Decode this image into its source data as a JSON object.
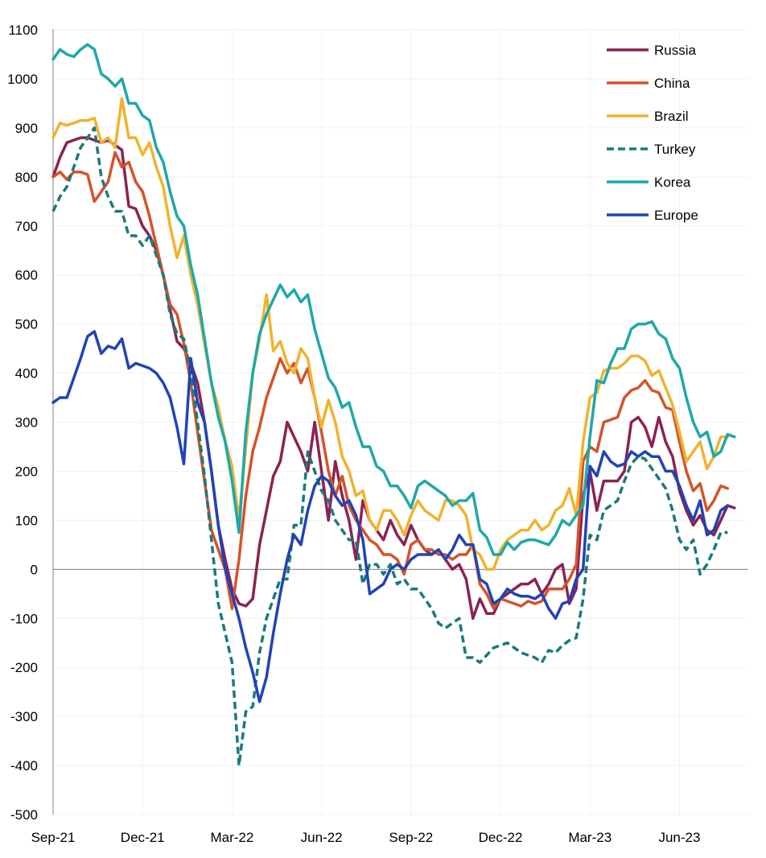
{
  "chart_data": {
    "type": "line",
    "title": "",
    "xlabel": "",
    "ylabel": "",
    "ylim": [
      -500,
      1100
    ],
    "yticks": [
      -500,
      -400,
      -300,
      -200,
      -100,
      0,
      100,
      200,
      300,
      400,
      500,
      600,
      700,
      800,
      900,
      1000,
      1100
    ],
    "xlim": [
      0,
      101
    ],
    "xticks": [
      {
        "x": 0,
        "label": "Sep-21"
      },
      {
        "x": 13,
        "label": "Dec-21"
      },
      {
        "x": 26,
        "label": "Mar-22"
      },
      {
        "x": 39,
        "label": "Jun-22"
      },
      {
        "x": 52,
        "label": "Sep-22"
      },
      {
        "x": 65,
        "label": "Dec-22"
      },
      {
        "x": 78,
        "label": "Mar-23"
      },
      {
        "x": 91,
        "label": "Jun-23"
      }
    ],
    "grid": "horizontal",
    "legend_position": "top-right",
    "series": [
      {
        "name": "Russia",
        "color": "#8B2252",
        "dash": "solid",
        "values": [
          800,
          840,
          870,
          875,
          880,
          880,
          875,
          870,
          875,
          865,
          855,
          740,
          735,
          700,
          680,
          650,
          600,
          530,
          465,
          450,
          420,
          380,
          300,
          200,
          90,
          20,
          -40,
          -70,
          -75,
          -60,
          50,
          120,
          190,
          220,
          300,
          270,
          240,
          200,
          300,
          200,
          100,
          220,
          150,
          100,
          20,
          140,
          100,
          80,
          60,
          100,
          70,
          50,
          90,
          60,
          40,
          30,
          40,
          20,
          0,
          10,
          -20,
          -100,
          -60,
          -90,
          -90,
          -60,
          -50,
          -40,
          -30,
          -30,
          -20,
          -50,
          -30,
          0,
          10,
          -70,
          -40,
          150,
          200,
          120,
          180,
          180,
          180,
          200,
          300,
          310,
          290,
          250,
          310,
          260,
          230,
          160,
          120,
          90,
          110,
          80,
          70,
          100,
          130,
          125
        ]
      },
      {
        "name": "China",
        "color": "#D4532A",
        "dash": "solid",
        "values": [
          800,
          810,
          795,
          810,
          810,
          805,
          750,
          770,
          790,
          850,
          820,
          830,
          790,
          770,
          720,
          660,
          600,
          540,
          520,
          460,
          380,
          280,
          180,
          80,
          40,
          0,
          -80,
          20,
          150,
          240,
          290,
          350,
          390,
          430,
          400,
          420,
          380,
          410,
          350,
          280,
          200,
          150,
          190,
          130,
          100,
          80,
          60,
          50,
          30,
          30,
          20,
          -10,
          50,
          60,
          40,
          40,
          30,
          30,
          20,
          30,
          30,
          50,
          -30,
          -50,
          -80,
          -60,
          -65,
          -70,
          -75,
          -65,
          -70,
          -65,
          -40,
          -40,
          -40,
          -20,
          10,
          220,
          250,
          240,
          300,
          305,
          310,
          350,
          365,
          370,
          385,
          365,
          360,
          330,
          325,
          260,
          200,
          160,
          175,
          120,
          140,
          170,
          165
        ]
      },
      {
        "name": "Brazil",
        "color": "#F0B32D",
        "dash": "solid",
        "values": [
          880,
          910,
          905,
          910,
          915,
          915,
          920,
          870,
          880,
          860,
          960,
          880,
          880,
          845,
          870,
          820,
          780,
          700,
          635,
          680,
          600,
          540,
          460,
          380,
          330,
          260,
          210,
          100,
          250,
          400,
          470,
          560,
          445,
          465,
          420,
          400,
          450,
          430,
          350,
          290,
          345,
          300,
          230,
          200,
          150,
          160,
          100,
          80,
          120,
          120,
          100,
          70,
          110,
          140,
          120,
          110,
          100,
          140,
          140,
          130,
          110,
          40,
          30,
          0,
          0,
          40,
          60,
          70,
          80,
          80,
          100,
          80,
          90,
          120,
          130,
          165,
          110,
          260,
          350,
          360,
          405,
          410,
          410,
          420,
          435,
          435,
          425,
          395,
          405,
          370,
          335,
          280,
          220,
          240,
          260,
          205,
          230,
          270,
          270
        ]
      },
      {
        "name": "Turkey",
        "color": "#1A7A7A",
        "dash": "dashed",
        "values": [
          730,
          760,
          780,
          820,
          860,
          880,
          900,
          800,
          760,
          730,
          730,
          680,
          680,
          660,
          680,
          640,
          600,
          520,
          480,
          470,
          400,
          300,
          190,
          60,
          -70,
          -130,
          -190,
          -400,
          -290,
          -280,
          -170,
          -100,
          -60,
          -20,
          -20,
          90,
          90,
          240,
          200,
          160,
          140,
          100,
          80,
          60,
          60,
          -30,
          10,
          10,
          -10,
          10,
          -30,
          -20,
          -40,
          -40,
          -60,
          -80,
          -110,
          -120,
          -110,
          -100,
          -180,
          -180,
          -190,
          -175,
          -160,
          -155,
          -150,
          -160,
          -170,
          -175,
          -180,
          -190,
          -165,
          -170,
          -155,
          -145,
          -140,
          -60,
          70,
          60,
          120,
          130,
          140,
          180,
          215,
          230,
          225,
          205,
          185,
          165,
          120,
          60,
          40,
          60,
          -10,
          10,
          40,
          75,
          75
        ]
      },
      {
        "name": "Korea",
        "color": "#1FA8A8",
        "dash": "solid",
        "values": [
          1040,
          1060,
          1050,
          1045,
          1060,
          1070,
          1060,
          1010,
          1000,
          985,
          1000,
          950,
          950,
          925,
          915,
          860,
          830,
          770,
          720,
          700,
          620,
          560,
          470,
          380,
          310,
          260,
          180,
          75,
          280,
          400,
          480,
          520,
          550,
          580,
          555,
          570,
          545,
          560,
          490,
          440,
          390,
          370,
          330,
          340,
          290,
          250,
          250,
          210,
          200,
          170,
          170,
          150,
          125,
          170,
          180,
          170,
          160,
          150,
          130,
          140,
          140,
          155,
          80,
          65,
          30,
          30,
          55,
          40,
          55,
          60,
          60,
          55,
          50,
          70,
          100,
          90,
          110,
          130,
          270,
          385,
          380,
          420,
          450,
          450,
          490,
          500,
          500,
          505,
          480,
          470,
          430,
          410,
          350,
          300,
          270,
          280,
          230,
          240,
          275,
          270
        ]
      },
      {
        "name": "Europe",
        "color": "#2143B4",
        "dash": "solid",
        "values": [
          340,
          350,
          350,
          390,
          430,
          475,
          485,
          440,
          455,
          450,
          470,
          410,
          420,
          415,
          410,
          400,
          380,
          350,
          290,
          215,
          430,
          340,
          300,
          200,
          90,
          0,
          -50,
          -100,
          -160,
          -210,
          -270,
          -220,
          -130,
          -50,
          20,
          70,
          50,
          120,
          170,
          190,
          180,
          150,
          130,
          140,
          110,
          60,
          -50,
          -40,
          -30,
          0,
          10,
          0,
          20,
          30,
          30,
          30,
          40,
          20,
          40,
          70,
          50,
          50,
          -20,
          -30,
          -70,
          -60,
          -40,
          -50,
          -55,
          -55,
          -60,
          -50,
          -80,
          -100,
          -70,
          -65,
          -20,
          0,
          210,
          190,
          240,
          220,
          210,
          215,
          240,
          230,
          240,
          230,
          230,
          200,
          200,
          170,
          130,
          100,
          140,
          70,
          80,
          120,
          130
        ]
      }
    ]
  }
}
